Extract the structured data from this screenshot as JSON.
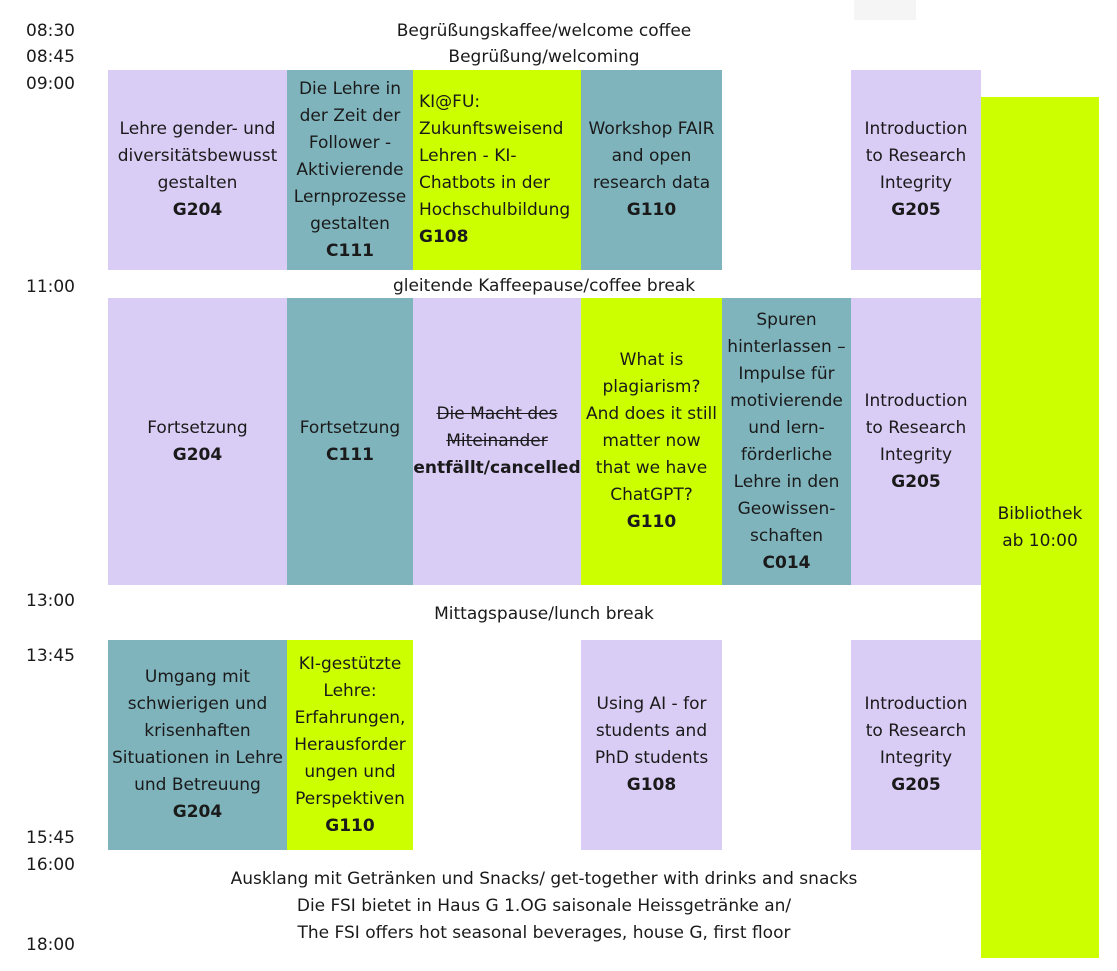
{
  "times": [
    "08:30",
    "08:45",
    "09:00",
    "11:00",
    "13:00",
    "13:45",
    "15:45",
    "16:00",
    "18:00"
  ],
  "banners": {
    "coffee": "Begrüßungskaffee/welcome coffee",
    "welcoming": "Begrüßung/welcoming",
    "coffee_break": "gleitende Kaffeepause/coffee break",
    "lunch": "Mittagspause/lunch break",
    "closing_1": "Ausklang mit Getränken und Snacks/ get-together with drinks and snacks",
    "closing_2": "Die FSI bietet in Haus G 1.OG saisonale Heissgetränke an/",
    "closing_3": "The FSI offers hot seasonal beverages, house G, first floor"
  },
  "morning": {
    "gender": {
      "lines": [
        "Lehre gender- und",
        "diversitätsbewusst",
        "gestalten"
      ],
      "room": "G204"
    },
    "follower": {
      "lines": [
        "Die Lehre in",
        "der Zeit der",
        "Follower -",
        "Aktivierende",
        "Lernprozesse",
        "gestalten"
      ],
      "room": "C111"
    },
    "kifu": {
      "lines": [
        "KI@FU:",
        "Zukunftsweisend",
        "Lehren - KI-",
        "Chatbots in der",
        "Hochschulbildung"
      ],
      "room": "G108"
    },
    "fair": {
      "lines": [
        "Workshop FAIR",
        "and open",
        "research data"
      ],
      "room": "G110"
    },
    "integrity": {
      "lines": [
        "Introduction",
        "to Research",
        "Integrity"
      ],
      "room": "G205"
    }
  },
  "midday": {
    "fortsetzung_g": {
      "lines": [
        "Fortsetzung"
      ],
      "room": "G204"
    },
    "fortsetzung_c": {
      "lines": [
        "Fortsetzung"
      ],
      "room": "C111"
    },
    "macht": {
      "lines": [
        "Die Macht des",
        "Miteinander"
      ],
      "status": "entfällt/cancelled"
    },
    "plagiarism": {
      "lines": [
        "What is",
        "plagiarism?",
        "And does it still",
        "matter now",
        "that we have",
        "ChatGPT?"
      ],
      "room": "G110"
    },
    "spuren": {
      "lines": [
        "Spuren",
        "hinterlassen –",
        "Impulse für",
        "motivierende",
        "und lern-",
        "förderliche",
        "Lehre in den",
        "Geowissen-",
        "schaften"
      ],
      "room": "C014"
    },
    "integrity": {
      "lines": [
        "Introduction",
        "to Research",
        "Integrity"
      ],
      "room": "G205"
    }
  },
  "afternoon": {
    "umgang": {
      "lines": [
        "Umgang mit",
        "schwierigen und",
        "krisenhaften",
        "Situationen in Lehre",
        "und Betreuung"
      ],
      "room": "G204"
    },
    "kilehre": {
      "lines": [
        "KI-gestützte",
        "Lehre:",
        "Erfahrungen,",
        "Herausforder",
        "ungen und",
        "Perspektiven"
      ],
      "room": "G110"
    },
    "usingai": {
      "lines": [
        "Using AI - for",
        "students and",
        "PhD students"
      ],
      "room": "G108"
    },
    "integrity": {
      "lines": [
        "Introduction",
        "to Research",
        "Integrity"
      ],
      "room": "G205"
    }
  },
  "library": {
    "lines": [
      "Bibliothek",
      "ab 10:00"
    ]
  },
  "colors": {
    "lavender": "#d9ccf5",
    "teal": "#7fb4bd",
    "lime": "#ccff00"
  }
}
